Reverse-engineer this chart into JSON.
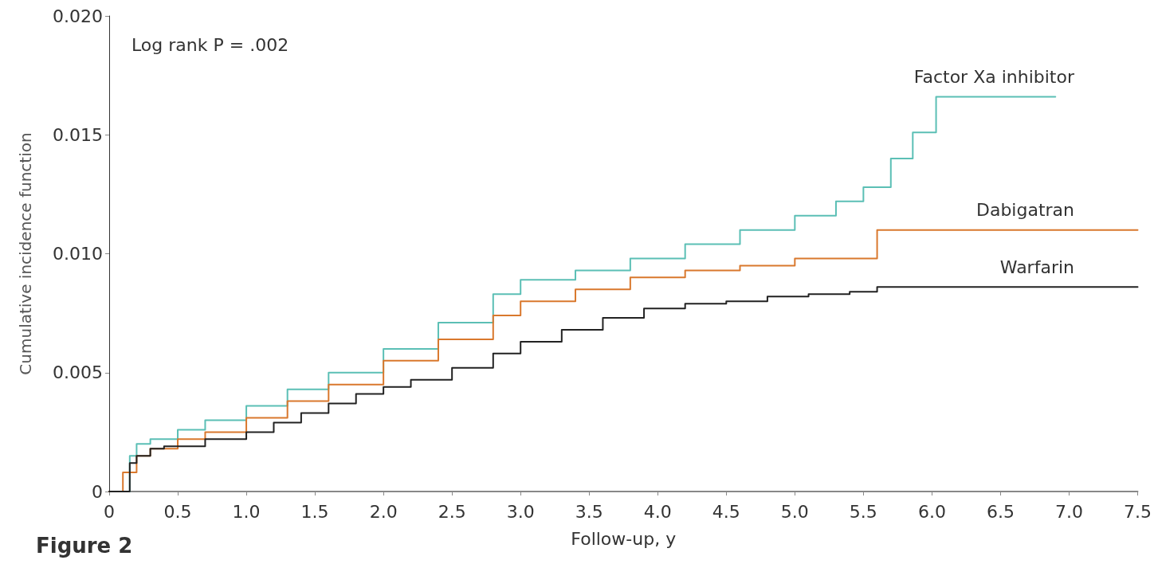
{
  "chart_data": {
    "type": "step",
    "xlabel": "Follow-up, y",
    "ylabel": "Cumulative incidence function",
    "annotations": [
      "Log rank P = .002",
      "Figure 2"
    ],
    "xlim": [
      0,
      7.5
    ],
    "xticks": [
      0,
      {
        "value": 0.5,
        "label": "0.5"
      },
      {
        "value": 1,
        "label": "1.0"
      },
      {
        "value": 1.5,
        "label": "1.5"
      },
      {
        "value": 2,
        "label": "2.0"
      },
      {
        "value": 2.5,
        "label": "2.5"
      },
      {
        "value": 3,
        "label": "3.0"
      },
      {
        "value": 3.5,
        "label": "3.5"
      },
      {
        "value": 4,
        "label": "4.0"
      },
      {
        "value": 4.5,
        "label": "4.5"
      },
      {
        "value": 5,
        "label": "5.0"
      },
      {
        "value": 5.5,
        "label": "5.5"
      },
      {
        "value": 6,
        "label": "6.0"
      },
      {
        "value": 6.5,
        "label": "6.5"
      },
      {
        "value": 7,
        "label": "7.0"
      },
      {
        "value": 7.5,
        "label": "7.5"
      }
    ],
    "ylim": [
      0,
      0.02
    ],
    "yticks": [
      0,
      {
        "value": 0.005,
        "label": "0.005"
      },
      {
        "value": 0.01,
        "label": "0.010"
      },
      {
        "value": 0.015,
        "label": "0.015"
      },
      {
        "value": 0.02,
        "label": "0.020"
      }
    ],
    "grid": false,
    "legend": false,
    "marker": "none",
    "line_style": "solid",
    "series": [
      {
        "name": "Factor Xa inhibitor",
        "color": "#5bbfb5",
        "x": [
          0,
          0.05,
          0.15,
          0.2,
          0.3,
          0.5,
          0.7,
          1.0,
          1.3,
          1.6,
          2.0,
          2.4,
          2.8,
          3.0,
          3.4,
          3.8,
          4.2,
          4.6,
          5.0,
          5.3,
          5.5,
          5.7,
          5.86,
          6.03,
          6.9
        ],
        "values": [
          0,
          0,
          0.0015,
          0.002,
          0.0022,
          0.0026,
          0.003,
          0.0036,
          0.0043,
          0.005,
          0.006,
          0.0071,
          0.0083,
          0.0089,
          0.0093,
          0.0098,
          0.0104,
          0.011,
          0.0116,
          0.0122,
          0.0128,
          0.014,
          0.0151,
          0.0166,
          0.0166
        ]
      },
      {
        "name": "Dabigatran",
        "color": "#d9782d",
        "x": [
          0,
          0.05,
          0.1,
          0.2,
          0.3,
          0.5,
          0.7,
          1.0,
          1.3,
          1.6,
          2.0,
          2.4,
          2.8,
          3.0,
          3.4,
          3.8,
          4.2,
          4.6,
          5.0,
          5.6,
          7.5
        ],
        "values": [
          0,
          0,
          0.0008,
          0.0015,
          0.0018,
          0.0022,
          0.0025,
          0.0031,
          0.0038,
          0.0045,
          0.0055,
          0.0064,
          0.0074,
          0.008,
          0.0085,
          0.009,
          0.0093,
          0.0095,
          0.0098,
          0.011,
          0.011
        ]
      },
      {
        "name": "Warfarin",
        "color": "#222222",
        "x": [
          0,
          0.1,
          0.15,
          0.2,
          0.3,
          0.4,
          0.6,
          0.7,
          1.0,
          1.2,
          1.4,
          1.6,
          1.8,
          2.0,
          2.2,
          2.5,
          2.8,
          3.0,
          3.3,
          3.6,
          3.9,
          4.2,
          4.5,
          4.8,
          5.1,
          5.4,
          5.6,
          7.5
        ],
        "values": [
          0,
          0,
          0.0012,
          0.0015,
          0.0018,
          0.0019,
          0.0019,
          0.0022,
          0.0025,
          0.0029,
          0.0033,
          0.0037,
          0.0041,
          0.0044,
          0.0047,
          0.0052,
          0.0058,
          0.0063,
          0.0068,
          0.0073,
          0.0077,
          0.0079,
          0.008,
          0.0082,
          0.0083,
          0.0084,
          0.0086,
          0.0086
        ]
      }
    ]
  }
}
